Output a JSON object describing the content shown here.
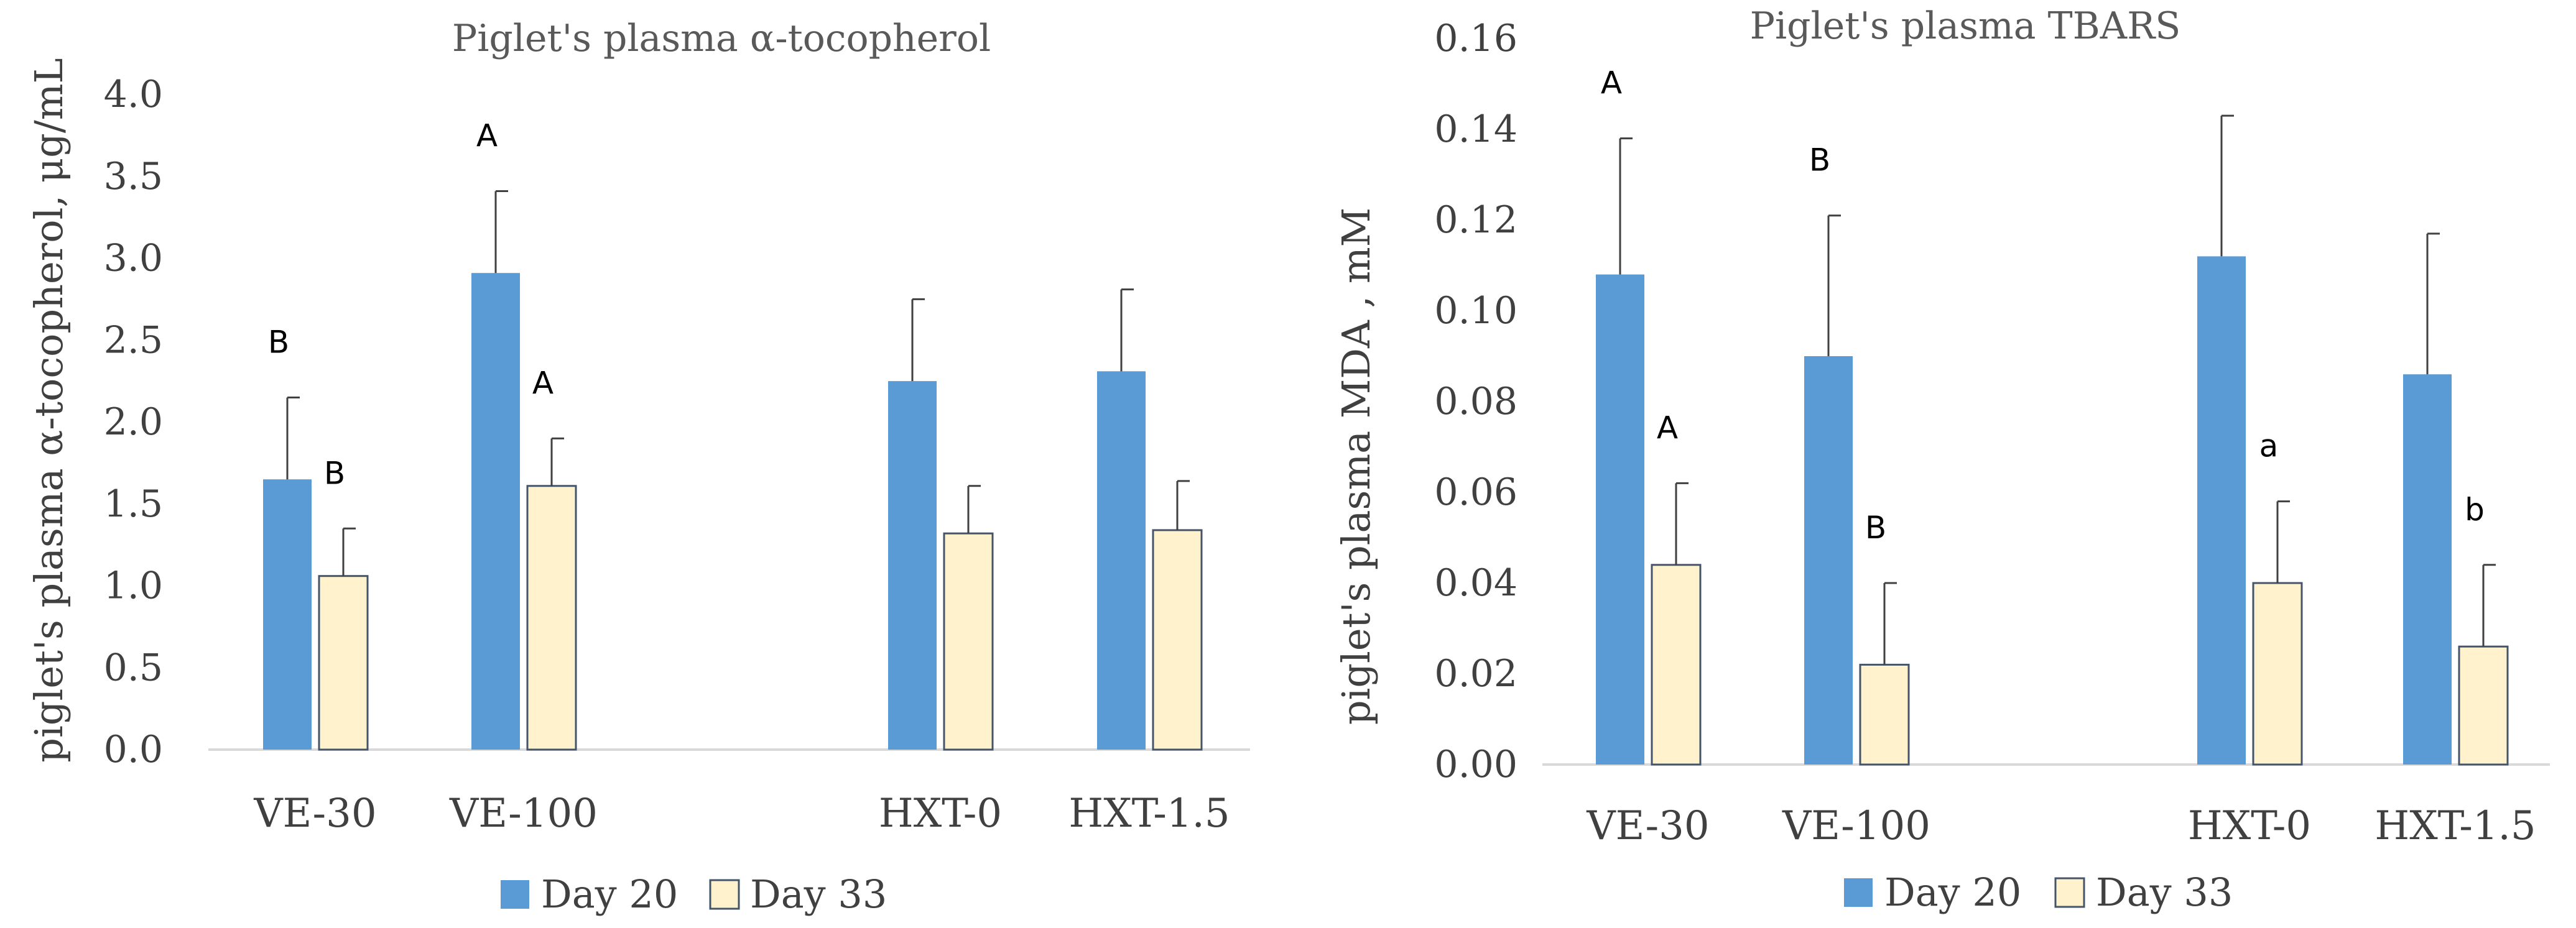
{
  "colors": {
    "day20": "#5b9bd5",
    "day33": "#fff2cc",
    "day33_stroke": "#44546a",
    "axis": "#d9d9d9",
    "error": "#404040"
  },
  "chart_data": [
    {
      "type": "bar",
      "title": "Piglet's plasma α-tocopherol",
      "xlabel": "",
      "ylabel": "piglet's plasma α-tocopherol, μg/mL",
      "ylim": [
        0,
        4.0
      ],
      "ytick_step": 0.5,
      "ytick_labels": [
        "0.0",
        "0.5",
        "1.0",
        "1.5",
        "2.0",
        "2.5",
        "3.0",
        "3.5",
        "4.0"
      ],
      "categories": [
        "VE-30",
        "VE-100",
        "HXT-0",
        "HXT-1.5"
      ],
      "series": [
        {
          "name": "Day 20",
          "values": [
            1.65,
            2.91,
            2.25,
            2.31
          ],
          "errors": [
            0.5,
            0.5,
            0.5,
            0.5
          ],
          "letters": [
            "B",
            "A",
            "",
            ""
          ]
        },
        {
          "name": "Day 33",
          "values": [
            1.06,
            1.61,
            1.32,
            1.34
          ],
          "errors": [
            0.29,
            0.29,
            0.29,
            0.3
          ],
          "letters": [
            "B",
            "A",
            "",
            ""
          ]
        }
      ]
    },
    {
      "type": "bar",
      "title": "Piglet's plasma TBARS",
      "xlabel": "",
      "ylabel": "piglet's plasma MDA , mM",
      "ylim": [
        0,
        0.16
      ],
      "ytick_step": 0.02,
      "ytick_labels": [
        "0.00",
        "0.02",
        "0.04",
        "0.06",
        "0.08",
        "0.10",
        "0.12",
        "0.14",
        "0.16"
      ],
      "categories": [
        "VE-30",
        "VE-100",
        "HXT-0",
        "HXT-1.5"
      ],
      "series": [
        {
          "name": "Day 20",
          "values": [
            0.108,
            0.09,
            0.112,
            0.086
          ],
          "errors": [
            0.03,
            0.031,
            0.031,
            0.031
          ],
          "letters": [
            "A",
            "B",
            "",
            ""
          ]
        },
        {
          "name": "Day 33",
          "values": [
            0.044,
            0.022,
            0.04,
            0.026
          ],
          "errors": [
            0.018,
            0.018,
            0.018,
            0.018
          ],
          "letters": [
            "A",
            "B",
            "a",
            "b"
          ]
        }
      ]
    }
  ]
}
